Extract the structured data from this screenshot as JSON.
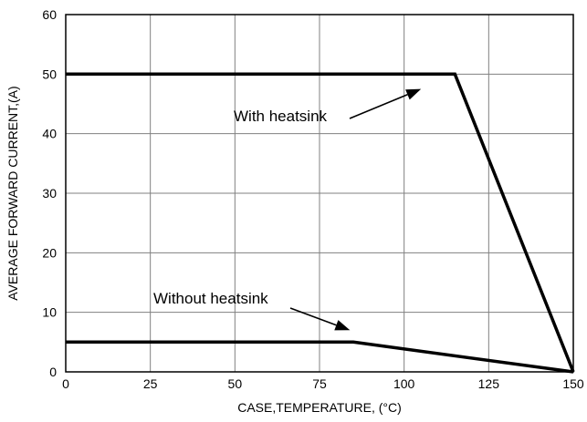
{
  "chart_data": {
    "type": "line",
    "title": "",
    "xlabel": "CASE,TEMPERATURE, (°C)",
    "ylabel": "AVERAGE FORWARD CURRENT,(A)",
    "xlim": [
      0,
      150
    ],
    "ylim": [
      0,
      60
    ],
    "xticks": [
      0,
      25,
      50,
      75,
      100,
      125,
      150
    ],
    "yticks": [
      0,
      10,
      20,
      30,
      40,
      50,
      60
    ],
    "grid": true,
    "series": [
      {
        "name": "With heatsink",
        "x": [
          0,
          115,
          150
        ],
        "y": [
          50,
          50,
          0
        ]
      },
      {
        "name": "Without heatsink",
        "x": [
          0,
          85,
          150
        ],
        "y": [
          5,
          5,
          0
        ]
      }
    ],
    "annotations": [
      {
        "text": "With heatsink",
        "series": 0,
        "arrow_to": [
          105,
          47.5
        ]
      },
      {
        "text": "Without heatsink",
        "series": 1,
        "arrow_to": [
          84,
          7
        ]
      }
    ]
  }
}
